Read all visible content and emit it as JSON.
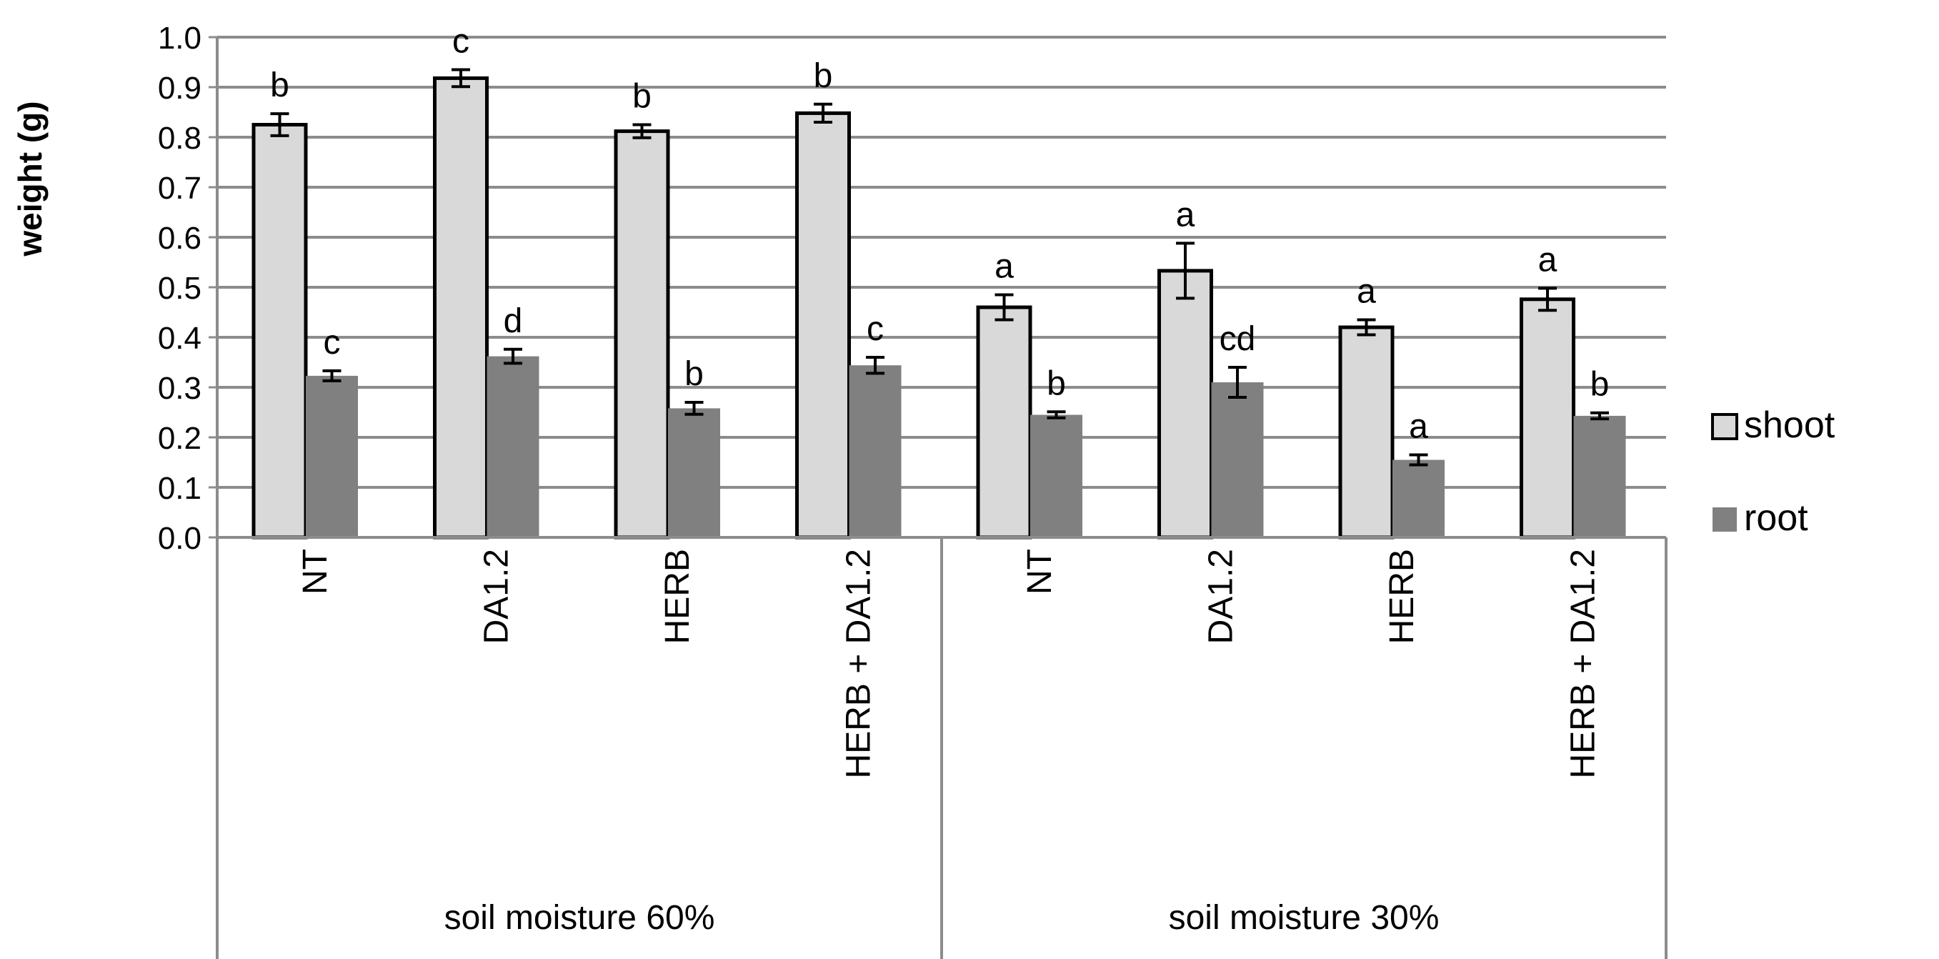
{
  "chart_data": {
    "type": "bar",
    "ylabel": "weight (g)",
    "ylim": [
      0,
      1.0
    ],
    "ytick_step": 0.1,
    "yticks": [
      "0.0",
      "0.1",
      "0.2",
      "0.3",
      "0.4",
      "0.5",
      "0.6",
      "0.7",
      "0.8",
      "0.9",
      "1.0"
    ],
    "grid": true,
    "legend_position": "right",
    "groups": [
      {
        "label": "soil  moisture 60%",
        "categories": [
          "NT",
          "DA1.2",
          "HERB",
          "HERB + DA1.2"
        ]
      },
      {
        "label": "soil moisture 30%",
        "categories": [
          "NT",
          "DA1.2",
          "HERB",
          "HERB + DA1.2"
        ]
      }
    ],
    "series": [
      {
        "name": "shoot",
        "color": "#d9d9d9",
        "values": [
          0.825,
          0.918,
          0.812,
          0.848,
          0.46,
          0.533,
          0.42,
          0.476
        ],
        "errors": [
          0.022,
          0.017,
          0.013,
          0.018,
          0.025,
          0.055,
          0.015,
          0.022
        ],
        "letters": [
          "b",
          "c",
          "b",
          "b",
          "a",
          "a",
          "a",
          "a"
        ]
      },
      {
        "name": "root",
        "color": "#808080",
        "values": [
          0.323,
          0.362,
          0.258,
          0.344,
          0.245,
          0.31,
          0.155,
          0.243
        ],
        "errors": [
          0.01,
          0.014,
          0.012,
          0.016,
          0.006,
          0.03,
          0.01,
          0.006
        ],
        "letters": [
          "c",
          "d",
          "b",
          "c",
          "b",
          "cd",
          "a",
          "b"
        ]
      }
    ]
  }
}
